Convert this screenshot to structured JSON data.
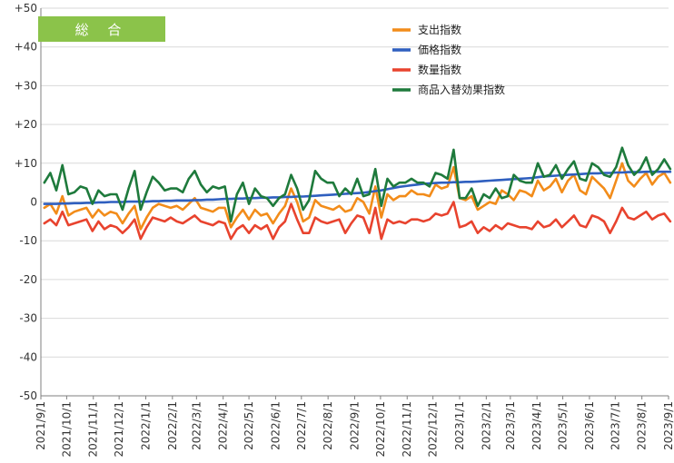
{
  "chart_data": {
    "type": "line",
    "title": "総 合",
    "colors": {
      "title_box": "#8bc34a",
      "grid": "#d9d9d9",
      "axis": "#7f7f7f"
    },
    "xlabel": "",
    "ylabel": "",
    "ylim": [
      -50,
      50
    ],
    "ytick_labels": [
      "+50",
      "+40",
      "+30",
      "+20",
      "+10",
      "0",
      "-10",
      "-20",
      "-30",
      "-40",
      "-50"
    ],
    "xtick_labels": [
      "2021/9/1",
      "2021/10/1",
      "2021/11/1",
      "2021/12/1",
      "2022/1/1",
      "2022/2/1",
      "2022/3/1",
      "2022/4/1",
      "2022/5/1",
      "2022/6/1",
      "2022/7/1",
      "2022/8/1",
      "2022/9/1",
      "2022/10/1",
      "2022/11/1",
      "2022/12/1",
      "2023/1/1",
      "2023/2/1",
      "2023/3/1",
      "2023/4/1",
      "2023/5/1",
      "2023/6/1",
      "2023/7/1",
      "2023/8/1",
      "2023/9/1"
    ],
    "x": [
      "2021/9/5",
      "2021/9/12",
      "2021/9/19",
      "2021/9/26",
      "2021/10/3",
      "2021/10/10",
      "2021/10/17",
      "2021/10/24",
      "2021/10/31",
      "2021/11/7",
      "2021/11/14",
      "2021/11/21",
      "2021/11/28",
      "2021/12/5",
      "2021/12/12",
      "2021/12/19",
      "2021/12/26",
      "2022/1/2",
      "2022/1/9",
      "2022/1/16",
      "2022/1/23",
      "2022/1/30",
      "2022/2/6",
      "2022/2/13",
      "2022/2/20",
      "2022/2/27",
      "2022/3/6",
      "2022/3/13",
      "2022/3/20",
      "2022/3/27",
      "2022/4/3",
      "2022/4/10",
      "2022/4/17",
      "2022/4/24",
      "2022/5/1",
      "2022/5/8",
      "2022/5/15",
      "2022/5/22",
      "2022/5/29",
      "2022/6/5",
      "2022/6/12",
      "2022/6/19",
      "2022/6/26",
      "2022/7/3",
      "2022/7/10",
      "2022/7/17",
      "2022/7/24",
      "2022/7/31",
      "2022/8/7",
      "2022/8/14",
      "2022/8/21",
      "2022/8/28",
      "2022/9/4",
      "2022/9/11",
      "2022/9/18",
      "2022/9/25",
      "2022/10/2",
      "2022/10/9",
      "2022/10/16",
      "2022/10/23",
      "2022/10/30",
      "2022/11/6",
      "2022/11/13",
      "2022/11/20",
      "2022/11/27",
      "2022/12/4",
      "2022/12/11",
      "2022/12/18",
      "2022/12/25",
      "2023/1/1",
      "2023/1/8",
      "2023/1/15",
      "2023/1/22",
      "2023/1/29",
      "2023/2/5",
      "2023/2/12",
      "2023/2/19",
      "2023/2/26",
      "2023/3/5",
      "2023/3/12",
      "2023/3/19",
      "2023/3/26",
      "2023/4/2",
      "2023/4/9",
      "2023/4/16",
      "2023/4/23",
      "2023/4/30",
      "2023/5/7",
      "2023/5/14",
      "2023/5/21",
      "2023/5/28",
      "2023/6/4",
      "2023/6/11",
      "2023/6/18",
      "2023/6/25",
      "2023/7/2",
      "2023/7/9",
      "2023/7/16",
      "2023/7/23",
      "2023/7/30",
      "2023/8/6",
      "2023/8/13",
      "2023/8/20",
      "2023/8/27",
      "2023/9/3"
    ],
    "legend_position": "top-right",
    "grid": true,
    "series": [
      {
        "name": "支出指数",
        "color": "#f28c1a",
        "values": [
          -1.5,
          -0.5,
          -3.0,
          1.5,
          -3.5,
          -2.5,
          -2.0,
          -1.5,
          -4.0,
          -2.0,
          -3.5,
          -2.5,
          -3.0,
          -5.5,
          -3.0,
          -1.0,
          -7.0,
          -4.0,
          -1.5,
          -0.5,
          -1.0,
          -1.5,
          -1.0,
          -2.0,
          -0.5,
          1.0,
          -1.5,
          -2.0,
          -2.5,
          -1.5,
          -1.5,
          -6.5,
          -4.0,
          -2.0,
          -4.5,
          -2.0,
          -3.5,
          -3.0,
          -5.5,
          -3.0,
          -1.0,
          3.5,
          0.0,
          -5.0,
          -4.0,
          0.5,
          -1.0,
          -1.5,
          -2.0,
          -1.0,
          -2.5,
          -2.0,
          1.0,
          0.0,
          -3.0,
          4.0,
          -4.0,
          2.0,
          0.5,
          1.5,
          1.5,
          3.0,
          2.0,
          2.0,
          1.5,
          4.5,
          3.5,
          4.0,
          9.0,
          1.0,
          0.5,
          1.5,
          -2.0,
          -1.0,
          0.0,
          -0.5,
          3.0,
          2.0,
          0.5,
          3.0,
          2.5,
          1.5,
          5.5,
          3.0,
          4.0,
          6.0,
          2.5,
          5.5,
          7.0,
          3.0,
          2.0,
          6.5,
          5.0,
          3.5,
          1.0,
          5.5,
          10.0,
          5.5,
          4.0,
          6.0,
          7.5,
          4.5,
          6.5,
          7.5,
          5.0
        ]
      },
      {
        "name": "価格指数",
        "color": "#2f5fbf",
        "values": [
          -0.5,
          -0.5,
          -0.5,
          -0.4,
          -0.4,
          -0.3,
          -0.3,
          -0.2,
          -0.2,
          -0.1,
          -0.1,
          0.0,
          0.0,
          0.0,
          0.1,
          0.1,
          0.1,
          0.1,
          0.2,
          0.2,
          0.3,
          0.3,
          0.4,
          0.4,
          0.4,
          0.5,
          0.5,
          0.6,
          0.6,
          0.7,
          0.8,
          0.8,
          0.9,
          0.9,
          1.0,
          1.0,
          1.1,
          1.1,
          1.2,
          1.2,
          1.3,
          1.3,
          1.4,
          1.4,
          1.5,
          1.6,
          1.7,
          1.8,
          1.9,
          2.0,
          2.1,
          2.2,
          2.3,
          2.4,
          2.6,
          2.8,
          3.0,
          3.3,
          3.6,
          3.9,
          4.1,
          4.3,
          4.5,
          4.7,
          4.8,
          4.9,
          5.0,
          5.0,
          5.1,
          5.1,
          5.2,
          5.2,
          5.3,
          5.4,
          5.5,
          5.6,
          5.7,
          5.8,
          5.9,
          6.0,
          6.1,
          6.2,
          6.4,
          6.6,
          6.7,
          6.8,
          6.9,
          7.0,
          7.1,
          7.2,
          7.3,
          7.4,
          7.4,
          7.5,
          7.5,
          7.6,
          7.6,
          7.7,
          7.7,
          7.7,
          7.8,
          7.8,
          7.8,
          7.8,
          7.8
        ]
      },
      {
        "name": "数量指数",
        "color": "#e8432e",
        "values": [
          -5.5,
          -4.5,
          -6.0,
          -2.5,
          -6.0,
          -5.5,
          -5.0,
          -4.5,
          -7.5,
          -5.0,
          -7.0,
          -6.0,
          -6.5,
          -8.0,
          -6.5,
          -4.5,
          -9.5,
          -6.5,
          -4.0,
          -4.5,
          -5.0,
          -4.0,
          -5.0,
          -5.5,
          -4.5,
          -3.5,
          -5.0,
          -5.5,
          -6.0,
          -5.0,
          -5.5,
          -9.5,
          -7.0,
          -6.0,
          -8.0,
          -6.0,
          -7.0,
          -6.0,
          -9.5,
          -6.5,
          -5.0,
          -0.5,
          -4.5,
          -8.0,
          -8.0,
          -4.0,
          -5.0,
          -5.5,
          -5.0,
          -4.5,
          -8.0,
          -5.5,
          -3.5,
          -4.0,
          -8.0,
          -1.5,
          -9.5,
          -4.5,
          -5.5,
          -5.0,
          -5.5,
          -4.5,
          -4.5,
          -5.0,
          -4.5,
          -3.0,
          -3.5,
          -3.0,
          0.0,
          -6.5,
          -6.0,
          -5.0,
          -8.0,
          -6.5,
          -7.5,
          -6.0,
          -7.0,
          -5.5,
          -6.0,
          -6.5,
          -6.5,
          -7.0,
          -5.0,
          -6.5,
          -6.0,
          -4.5,
          -6.5,
          -5.0,
          -3.5,
          -6.0,
          -6.5,
          -3.5,
          -4.0,
          -5.0,
          -8.0,
          -5.0,
          -1.5,
          -4.0,
          -4.5,
          -3.5,
          -2.5,
          -4.5,
          -3.5,
          -3.0,
          -5.0
        ]
      },
      {
        "name": "商品入替効果指数",
        "color": "#1e7a3c",
        "values": [
          5.0,
          7.5,
          3.0,
          9.5,
          2.0,
          2.5,
          4.0,
          3.5,
          -0.5,
          3.0,
          1.5,
          2.0,
          2.0,
          -2.0,
          3.5,
          8.0,
          -2.0,
          2.5,
          6.5,
          5.0,
          3.0,
          3.5,
          3.5,
          2.5,
          6.0,
          8.0,
          4.5,
          2.5,
          4.0,
          3.5,
          4.0,
          -5.0,
          2.0,
          5.0,
          -0.5,
          3.5,
          1.5,
          1.0,
          -1.0,
          1.0,
          2.0,
          7.0,
          3.5,
          -2.0,
          0.5,
          8.0,
          6.0,
          5.0,
          5.0,
          1.5,
          3.5,
          2.0,
          6.0,
          1.5,
          2.0,
          8.5,
          -1.0,
          6.0,
          4.0,
          5.0,
          5.0,
          6.0,
          5.0,
          5.0,
          4.0,
          7.5,
          7.0,
          6.0,
          13.5,
          1.0,
          1.0,
          3.5,
          -1.0,
          2.0,
          1.0,
          3.5,
          1.0,
          1.5,
          7.0,
          5.5,
          5.0,
          5.0,
          10.0,
          6.5,
          7.0,
          9.5,
          6.0,
          8.5,
          10.5,
          6.0,
          5.5,
          10.0,
          9.0,
          7.0,
          6.5,
          9.0,
          14.0,
          9.5,
          7.0,
          8.5,
          11.5,
          7.0,
          8.5,
          11.0,
          8.5
        ]
      }
    ]
  }
}
